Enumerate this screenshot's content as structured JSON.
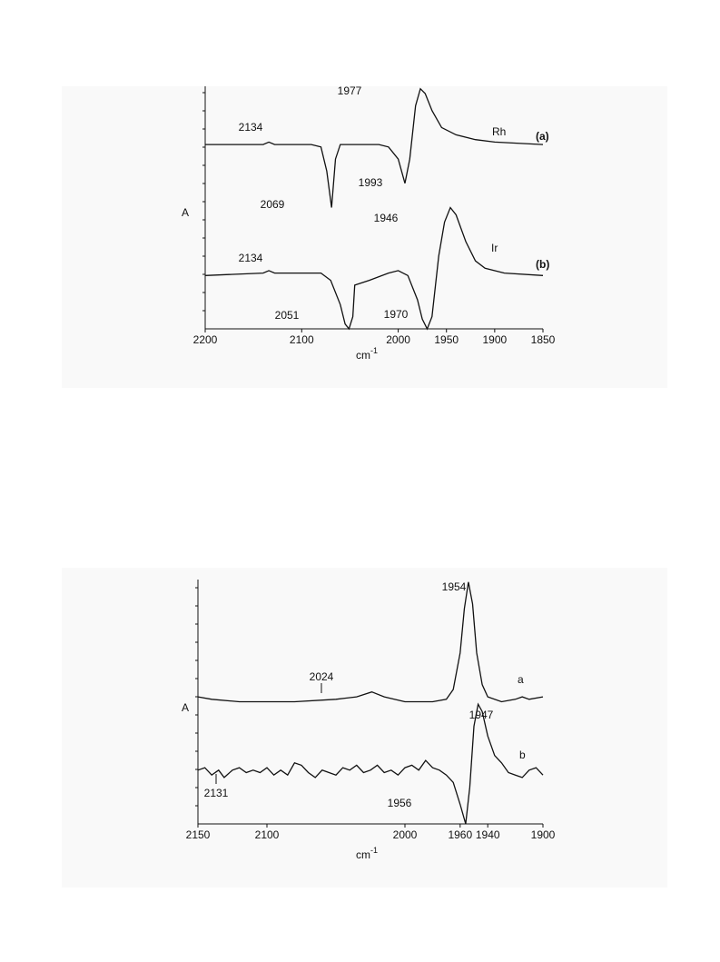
{
  "chart_data": [
    {
      "type": "line",
      "y_label": "A",
      "x_label": "cm",
      "x_label_sup": "-1",
      "xlim": [
        2200,
        1850
      ],
      "ylim": [
        0,
        1
      ],
      "xticks": [
        2200,
        2100,
        2000,
        1950,
        1900,
        1850
      ],
      "series": [
        {
          "name": "Rh",
          "tag": "(a)",
          "color": "#111111",
          "x": [
            2200,
            2140,
            2134,
            2128,
            2090,
            2080,
            2074,
            2069,
            2065,
            2060,
            2020,
            2010,
            2000,
            1993,
            1988,
            1982,
            1977,
            1972,
            1965,
            1955,
            1940,
            1920,
            1900,
            1850
          ],
          "values": [
            0.76,
            0.76,
            0.77,
            0.76,
            0.76,
            0.75,
            0.65,
            0.5,
            0.7,
            0.76,
            0.76,
            0.75,
            0.7,
            0.6,
            0.7,
            0.92,
            0.99,
            0.97,
            0.9,
            0.83,
            0.8,
            0.78,
            0.77,
            0.76
          ]
        },
        {
          "name": "Ir",
          "tag": "(b)",
          "color": "#111111",
          "x": [
            2200,
            2140,
            2134,
            2128,
            2080,
            2070,
            2060,
            2055,
            2051,
            2047,
            2045,
            2030,
            2010,
            2000,
            1990,
            1980,
            1975,
            1970,
            1965,
            1958,
            1952,
            1946,
            1940,
            1930,
            1920,
            1910,
            1890,
            1850
          ],
          "values": [
            0.22,
            0.23,
            0.24,
            0.23,
            0.23,
            0.2,
            0.1,
            0.02,
            0,
            0.05,
            0.18,
            0.2,
            0.23,
            0.24,
            0.22,
            0.12,
            0.04,
            0,
            0.05,
            0.3,
            0.44,
            0.5,
            0.47,
            0.36,
            0.28,
            0.25,
            0.23,
            0.22
          ]
        }
      ],
      "annotations": [
        "2134",
        "2069",
        "1993",
        "1977",
        "2134",
        "2051",
        "1970",
        "1946"
      ]
    },
    {
      "type": "line",
      "y_label": "A",
      "x_label": "cm",
      "x_label_sup": "-1",
      "xlim": [
        2150,
        1900
      ],
      "ylim": [
        0,
        1
      ],
      "xticks": [
        2150,
        2100,
        2000,
        1960,
        1940,
        1900
      ],
      "series": [
        {
          "name": "a",
          "color": "#111111",
          "x": [
            2150,
            2140,
            2120,
            2080,
            2050,
            2035,
            2024,
            2015,
            2000,
            1980,
            1970,
            1965,
            1960,
            1957,
            1954,
            1951,
            1948,
            1944,
            1940,
            1930,
            1920,
            1915,
            1910,
            1900
          ],
          "values": [
            0.52,
            0.51,
            0.5,
            0.5,
            0.51,
            0.52,
            0.54,
            0.52,
            0.5,
            0.5,
            0.51,
            0.55,
            0.7,
            0.88,
            0.99,
            0.9,
            0.7,
            0.57,
            0.52,
            0.5,
            0.51,
            0.52,
            0.51,
            0.52
          ]
        },
        {
          "name": "b",
          "color": "#111111",
          "x": [
            2150,
            2145,
            2140,
            2135,
            2131,
            2125,
            2120,
            2115,
            2110,
            2105,
            2100,
            2095,
            2090,
            2085,
            2080,
            2075,
            2070,
            2065,
            2060,
            2055,
            2050,
            2045,
            2040,
            2035,
            2030,
            2025,
            2020,
            2015,
            2010,
            2005,
            2000,
            1995,
            1990,
            1985,
            1980,
            1975,
            1970,
            1965,
            1960,
            1956,
            1953,
            1950,
            1947,
            1944,
            1940,
            1935,
            1930,
            1925,
            1920,
            1915,
            1910,
            1905,
            1900
          ],
          "values": [
            0.22,
            0.23,
            0.2,
            0.22,
            0.19,
            0.22,
            0.23,
            0.21,
            0.22,
            0.21,
            0.23,
            0.2,
            0.22,
            0.2,
            0.25,
            0.24,
            0.21,
            0.19,
            0.22,
            0.21,
            0.2,
            0.23,
            0.22,
            0.24,
            0.21,
            0.22,
            0.24,
            0.21,
            0.22,
            0.2,
            0.23,
            0.24,
            0.22,
            0.26,
            0.23,
            0.22,
            0.2,
            0.17,
            0.08,
            0,
            0.15,
            0.4,
            0.49,
            0.46,
            0.36,
            0.28,
            0.25,
            0.21,
            0.2,
            0.19,
            0.22,
            0.23,
            0.2
          ]
        }
      ],
      "annotations": [
        "1954",
        "2024",
        "1947",
        "2131",
        "1956"
      ]
    }
  ]
}
